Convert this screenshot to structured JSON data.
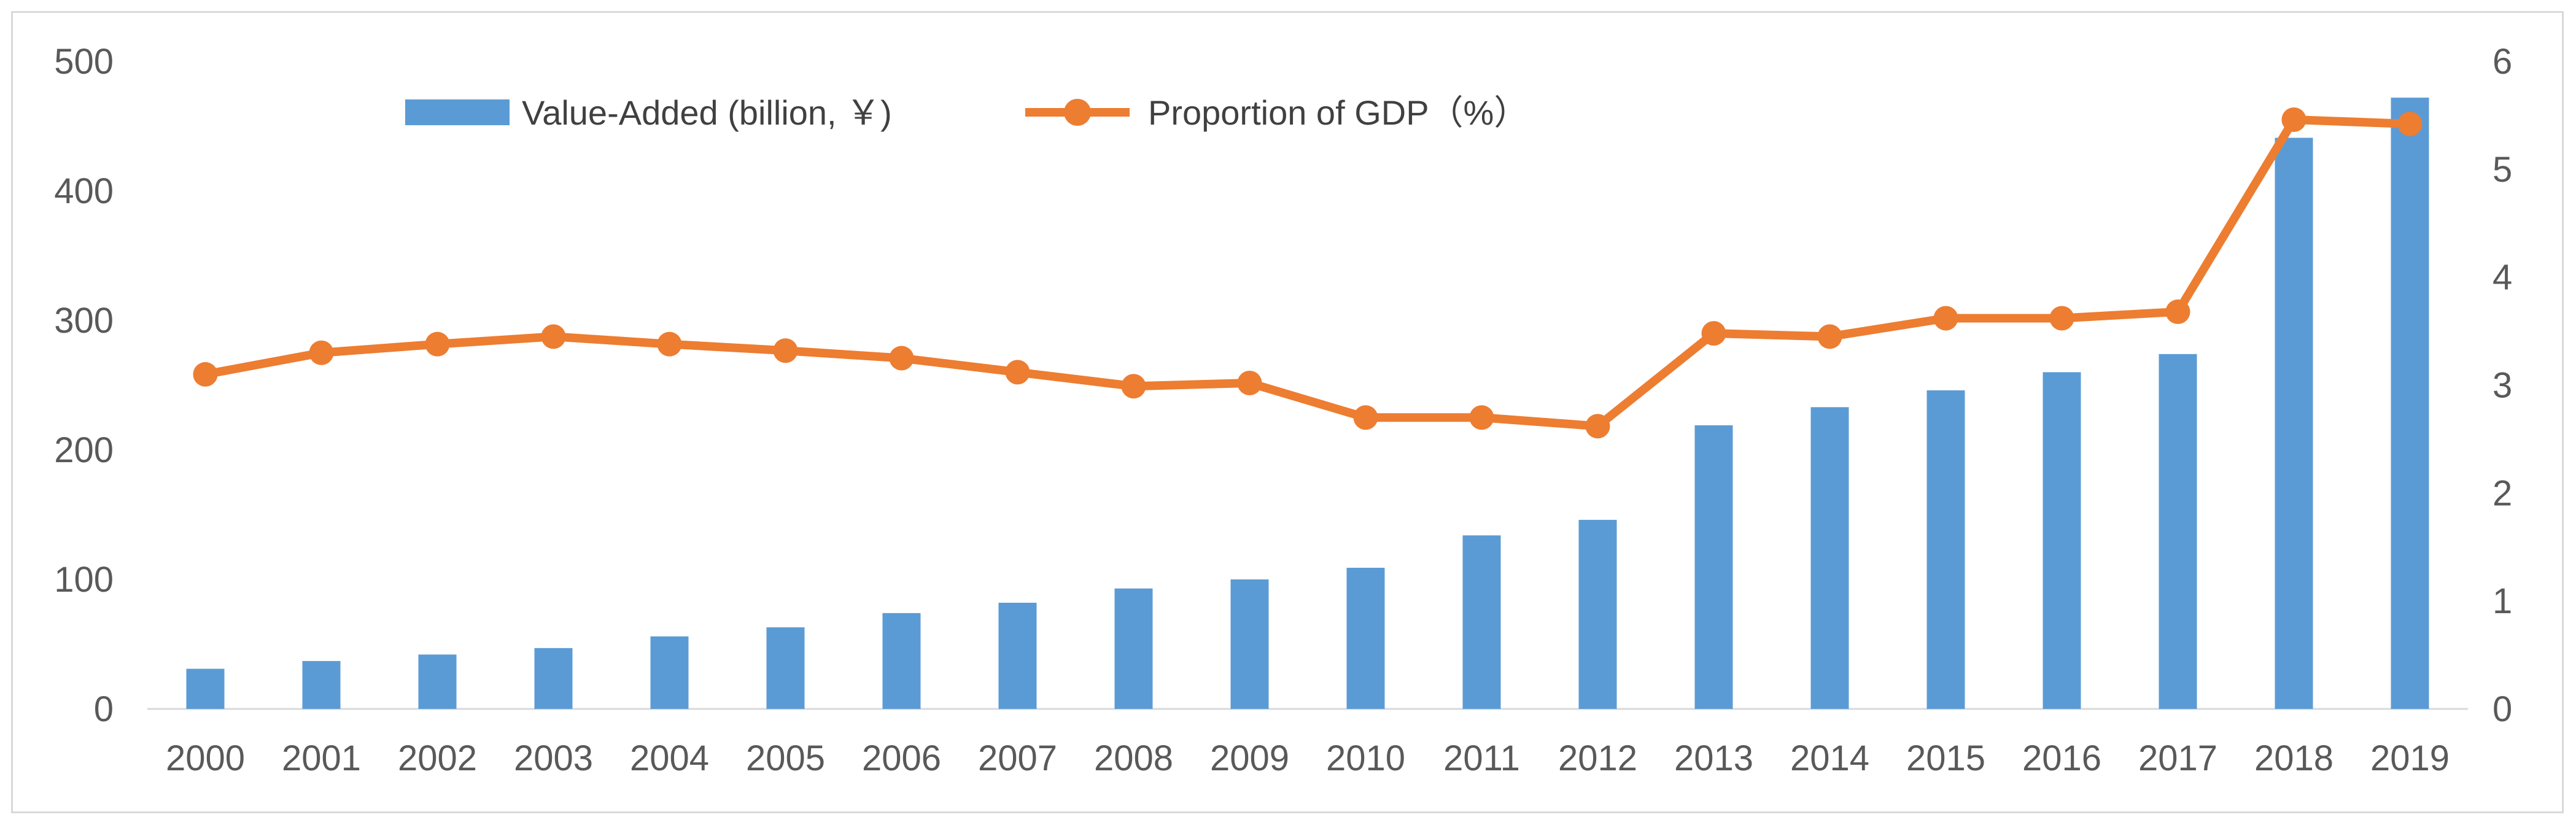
{
  "chart_data": {
    "type": "bar+line",
    "title": "",
    "categories": [
      "2000",
      "2001",
      "2002",
      "2003",
      "2004",
      "2005",
      "2006",
      "2007",
      "2008",
      "2009",
      "2010",
      "2011",
      "2012",
      "2013",
      "2014",
      "2015",
      "2016",
      "2017",
      "2018",
      "2019"
    ],
    "series": [
      {
        "name": "Value-Added (billion, ￥)",
        "type": "bar",
        "axis": "left",
        "color": "#5b9bd5",
        "values": [
          31,
          37,
          42,
          47,
          56,
          63,
          74,
          82,
          93,
          100,
          109,
          134,
          146,
          219,
          233,
          246,
          260,
          274,
          441,
          472
        ]
      },
      {
        "name": "Proportion of GDP（%）",
        "type": "line",
        "axis": "right",
        "color": "#ed7d31",
        "values": [
          3.1,
          3.3,
          3.38,
          3.45,
          3.38,
          3.32,
          3.25,
          3.12,
          2.99,
          3.02,
          2.7,
          2.7,
          2.62,
          3.48,
          3.45,
          3.62,
          3.62,
          3.68,
          5.46,
          5.42
        ]
      }
    ],
    "left_axis": {
      "ylim": [
        0,
        500
      ],
      "ticks": [
        "0",
        "100",
        "200",
        "300",
        "400",
        "500"
      ]
    },
    "right_axis": {
      "ylim": [
        0,
        6
      ],
      "ticks": [
        "0",
        "1",
        "2",
        "3",
        "4",
        "5",
        "6"
      ]
    },
    "legend_position": "top-left",
    "grid": false
  }
}
